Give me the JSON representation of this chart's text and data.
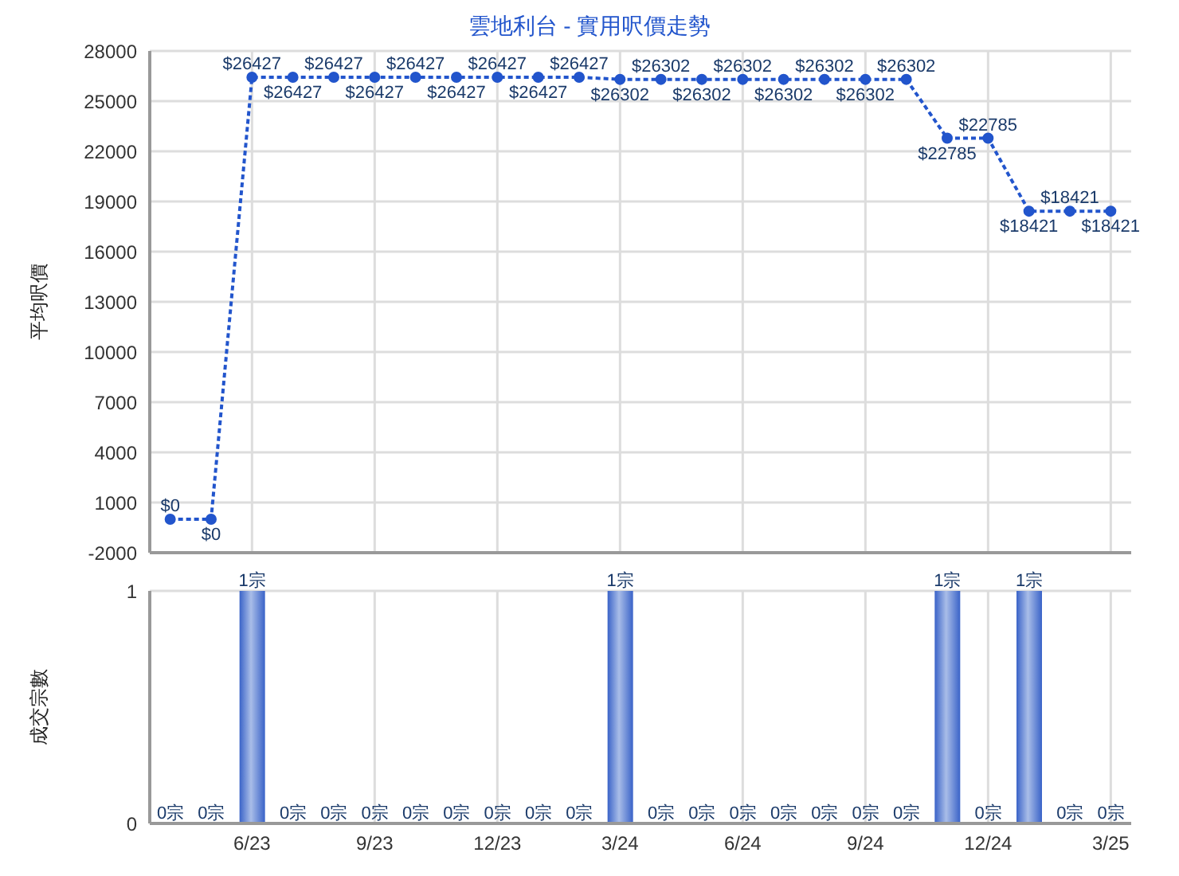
{
  "chart_data": [
    {
      "type": "line",
      "title": "雲地利台 - 實用呎價走勢",
      "ylabel": "平均呎價",
      "categories": [
        null,
        null,
        null,
        null,
        null,
        null,
        null,
        null,
        null,
        null,
        null,
        null,
        null,
        null,
        null,
        null,
        null,
        null,
        null,
        null,
        null,
        null,
        null,
        null
      ],
      "series": [
        {
          "color": "#2255cc",
          "values": [
            0,
            0,
            26427,
            26427,
            26427,
            26427,
            26427,
            26427,
            26427,
            26427,
            26427,
            26302,
            26302,
            26302,
            26302,
            26302,
            26302,
            26302,
            26302,
            22785,
            22785,
            18421,
            18421,
            18421
          ],
          "value_labels": [
            "$0",
            "$0",
            "$26427",
            "$26427",
            "$26427",
            "$26427",
            "$26427",
            "$26427",
            "$26427",
            "$26427",
            "$26427",
            "$26302",
            "$26302",
            "$26302",
            "$26302",
            "$26302",
            "$26302",
            "$26302",
            "$26302",
            "$22785",
            "$22785",
            "$18421",
            "$18421",
            "$18421"
          ]
        }
      ],
      "ylim": [
        -2000,
        28000
      ],
      "yticks": [
        -2000,
        1000,
        4000,
        7000,
        10000,
        13000,
        16000,
        19000,
        22000,
        25000,
        28000
      ],
      "grid": true,
      "marker": "circle",
      "line_style": "dotted",
      "tick_labels": "y"
    },
    {
      "type": "bar",
      "ylabel": "成交宗數",
      "categories": [
        null,
        null,
        "6/23",
        null,
        null,
        "9/23",
        null,
        null,
        "12/23",
        null,
        null,
        "3/24",
        null,
        null,
        "6/24",
        null,
        null,
        "9/24",
        null,
        null,
        "12/24",
        null,
        null,
        "3/25"
      ],
      "series": [
        {
          "color": "#3a63c8",
          "values": [
            0,
            0,
            1,
            0,
            0,
            0,
            0,
            0,
            0,
            0,
            0,
            1,
            0,
            0,
            0,
            0,
            0,
            0,
            0,
            1,
            0,
            1,
            0,
            0
          ],
          "value_labels": [
            "0宗",
            "0宗",
            "1宗",
            "0宗",
            "0宗",
            "0宗",
            "0宗",
            "0宗",
            "0宗",
            "0宗",
            "0宗",
            "1宗",
            "0宗",
            "0宗",
            "0宗",
            "0宗",
            "0宗",
            "0宗",
            "0宗",
            "1宗",
            "0宗",
            "1宗",
            "0宗",
            "0宗"
          ]
        }
      ],
      "ylim": [
        0,
        1
      ],
      "yticks": [
        0,
        1
      ],
      "grid": true
    }
  ]
}
